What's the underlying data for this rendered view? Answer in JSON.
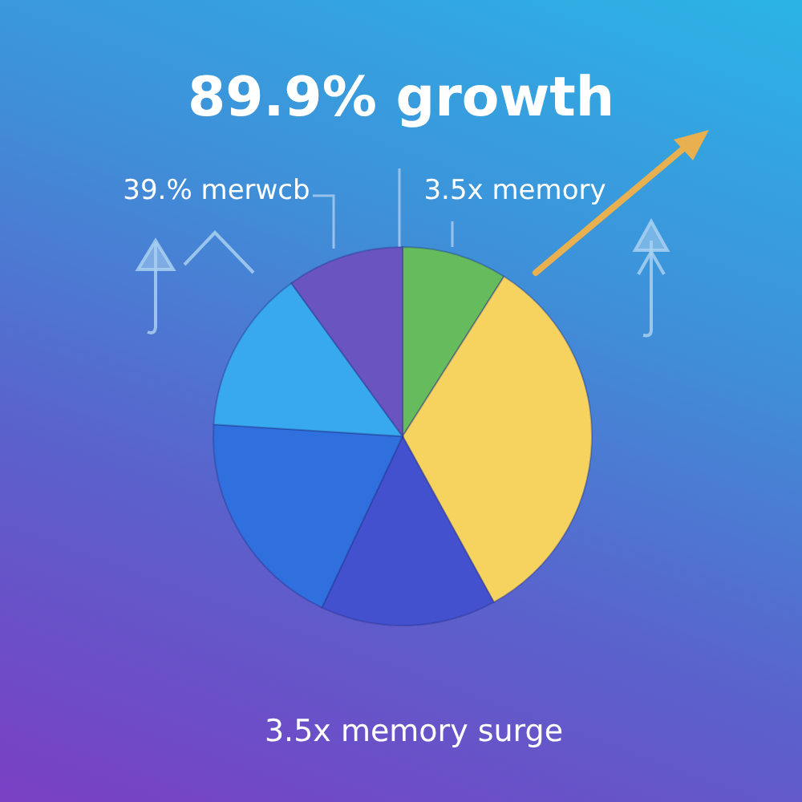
{
  "chart_data": {
    "type": "pie",
    "title": "89.9% growth",
    "categories": [
      null,
      null,
      null,
      null,
      null,
      null
    ],
    "values": [
      9,
      33,
      15,
      19,
      14,
      10
    ],
    "colors": [
      "#66bb5c",
      "#f6d25e",
      "#4351cf",
      "#2f6fde",
      "#38a9ef",
      "#6a55c0"
    ],
    "annotations": [
      "39.% merwcb",
      "3.5x memory",
      "3.5x memory surge"
    ]
  }
}
